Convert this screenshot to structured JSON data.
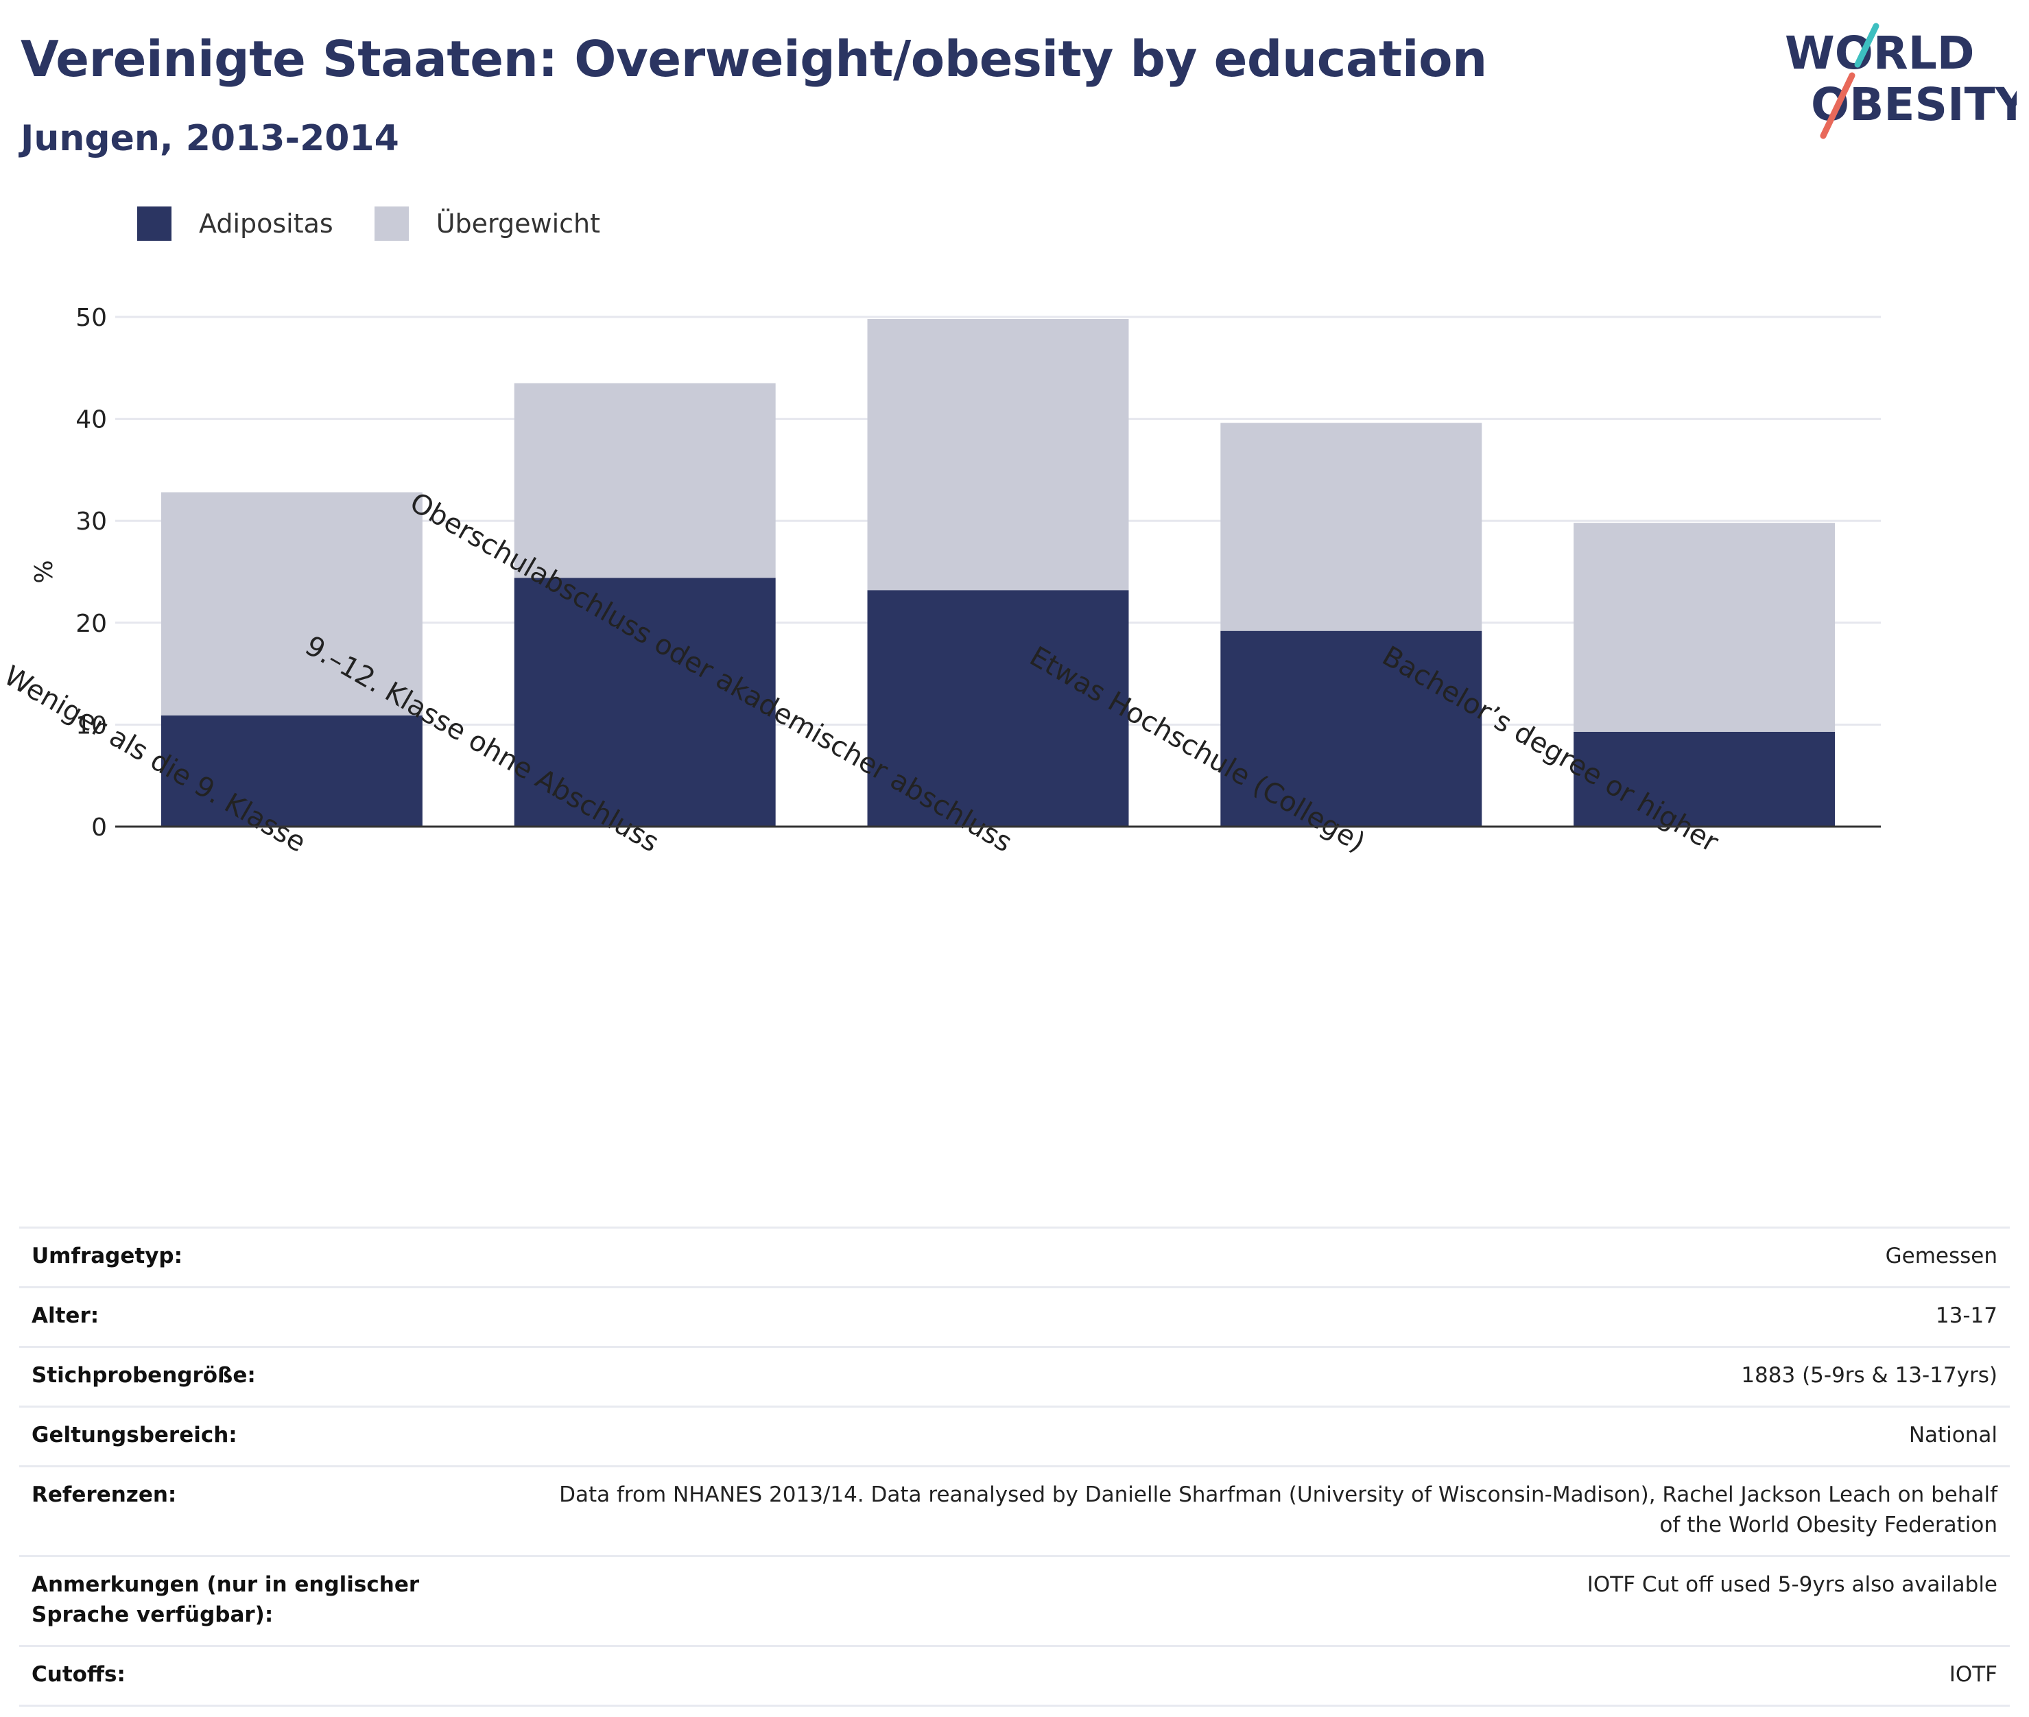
{
  "header": {
    "title": "Vereinigte Staaten: Overweight/obesity by education",
    "subtitle": "Jungen, 2013-2014"
  },
  "logo": {
    "line1": "WORLD",
    "line2": "OBESITY",
    "text_color": "#2b3562",
    "slash_colors": [
      "#3dbfc0",
      "#e8695a"
    ]
  },
  "legend": {
    "items": [
      {
        "label": "Adipositas",
        "color": "#2b3562"
      },
      {
        "label": "Übergewicht",
        "color": "#c9cbd7"
      }
    ]
  },
  "chart_data": {
    "type": "bar",
    "stacked": true,
    "ylabel": "%",
    "ylim": [
      0,
      50
    ],
    "yticks": [
      0,
      10,
      20,
      30,
      40,
      50
    ],
    "grid": true,
    "legend_position": "top-left",
    "categories": [
      "Weniger als die 9. Klasse",
      "9.–12. Klasse ohne Abschluss",
      "Oberschulabschluss oder akademischer abschluss",
      "Etwas Hochschule (College)",
      "Bachelor’s degree or higher"
    ],
    "series": [
      {
        "name": "Adipositas",
        "color": "#2b3562",
        "values": [
          10.9,
          24.4,
          23.2,
          19.2,
          9.3
        ]
      },
      {
        "name": "Übergewicht",
        "color": "#c9cbd7",
        "values": [
          21.9,
          19.1,
          26.6,
          20.4,
          20.5
        ]
      }
    ]
  },
  "info": {
    "rows": [
      {
        "key": "Umfragetyp:",
        "value": "Gemessen"
      },
      {
        "key": "Alter:",
        "value": "13-17"
      },
      {
        "key": "Stichprobengröße:",
        "value": "1883 (5-9rs & 13-17yrs)"
      },
      {
        "key": "Geltungsbereich:",
        "value": "National"
      },
      {
        "key": "Referenzen:",
        "value": "Data from NHANES 2013/14. Data reanalysed by Danielle Sharfman (University of Wisconsin-Madison), Rachel Jackson Leach on behalf of the World Obesity Federation"
      },
      {
        "key": "Anmerkungen (nur in englischer Sprache verfügbar):",
        "value": "IOTF Cut off used 5-9yrs also available"
      },
      {
        "key": "Cutoffs:",
        "value": "IOTF"
      }
    ]
  }
}
